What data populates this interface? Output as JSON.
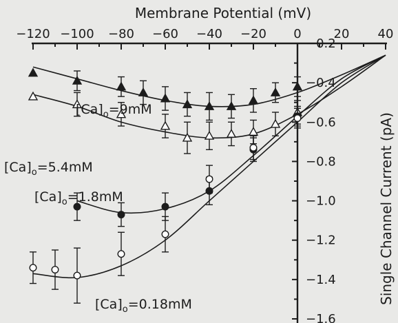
{
  "chart_data": {
    "type": "scatter",
    "title": "",
    "xlabel": "Membrane Potential (mV)",
    "ylabel": "Single Channel Current (pA)",
    "xlim": [
      -120,
      40
    ],
    "ylim": [
      -1.6,
      -0.2
    ],
    "x_ticks": [
      "-120",
      "-100",
      "-80",
      "-60",
      "-40",
      "-20",
      "0",
      "20",
      "40"
    ],
    "y_ticks": [
      "-0.2",
      "-0.4",
      "-0.6",
      "-0.8",
      "-1.0",
      "-1.2",
      "-1.4",
      "-1.6"
    ],
    "x_axis_position": "top",
    "y_axis_position": "right",
    "y_axis_crosses_at_x": 0,
    "series": [
      {
        "name": "[Ca]o=9mM",
        "label_main": "[Ca]",
        "label_sub": "o",
        "label_rest": "=9mM",
        "marker": "filled-triangle",
        "x": [
          -120,
          -100,
          -80,
          -70,
          -60,
          -50,
          -40,
          -30,
          -20,
          -10,
          0
        ],
        "y": [
          -0.35,
          -0.39,
          -0.42,
          -0.45,
          -0.48,
          -0.51,
          -0.52,
          -0.52,
          -0.49,
          -0.45,
          -0.42
        ],
        "err": [
          0,
          0.05,
          0.05,
          0.06,
          0.06,
          0.06,
          0.07,
          0.06,
          0.06,
          0.05,
          0.05
        ],
        "fit": [
          [
            -120,
            -0.32
          ],
          [
            -100,
            -0.38
          ],
          [
            -80,
            -0.44
          ],
          [
            -60,
            -0.49
          ],
          [
            -40,
            -0.52
          ],
          [
            -20,
            -0.51
          ],
          [
            0,
            -0.45
          ],
          [
            20,
            -0.36
          ],
          [
            40,
            -0.26
          ]
        ]
      },
      {
        "name": "[Ca]o=5.4mM",
        "label_main": "[Ca]",
        "label_sub": "o",
        "label_rest": "=5.4mM",
        "marker": "open-triangle",
        "x": [
          -120,
          -100,
          -80,
          -60,
          -50,
          -40,
          -30,
          -20,
          -10,
          0
        ],
        "y": [
          -0.47,
          -0.51,
          -0.56,
          -0.62,
          -0.68,
          -0.67,
          -0.66,
          -0.65,
          -0.61,
          -0.55
        ],
        "err": [
          0,
          0.06,
          0.06,
          0.06,
          0.08,
          0.07,
          0.06,
          0.06,
          0.06,
          0.06
        ],
        "fit": [
          [
            -120,
            -0.46
          ],
          [
            -100,
            -0.52
          ],
          [
            -80,
            -0.6
          ],
          [
            -60,
            -0.65
          ],
          [
            -40,
            -0.68
          ],
          [
            -20,
            -0.66
          ],
          [
            0,
            -0.56
          ],
          [
            20,
            -0.42
          ],
          [
            40,
            -0.26
          ]
        ]
      },
      {
        "name": "[Ca]o=1.8mM",
        "label_main": "[Ca]",
        "label_sub": "o",
        "label_rest": "=1.8mM",
        "marker": "filled-circle",
        "x": [
          -100,
          -80,
          -60,
          -40,
          -20,
          0
        ],
        "y": [
          -1.03,
          -1.07,
          -1.03,
          -0.95,
          -0.74,
          -0.57
        ],
        "err": [
          0.07,
          0.06,
          0.07,
          0.07,
          0.06,
          0.05
        ],
        "fit": [
          [
            -100,
            -1.0
          ],
          [
            -80,
            -1.06
          ],
          [
            -60,
            -1.04
          ],
          [
            -40,
            -0.95
          ],
          [
            -20,
            -0.77
          ],
          [
            0,
            -0.57
          ],
          [
            20,
            -0.38
          ],
          [
            40,
            -0.26
          ]
        ]
      },
      {
        "name": "[Ca]o=0.18mM",
        "label_main": "[Ca]",
        "label_sub": "o",
        "label_rest": "=0.18mM",
        "marker": "open-circle",
        "x": [
          -120,
          -110,
          -100,
          -80,
          -60,
          -40,
          -20,
          0
        ],
        "y": [
          -1.34,
          -1.35,
          -1.38,
          -1.27,
          -1.17,
          -0.89,
          -0.73,
          -0.58
        ],
        "err": [
          0.08,
          0.1,
          0.14,
          0.11,
          0.09,
          0.07,
          0.06,
          0.05
        ],
        "fit": [
          [
            -120,
            -1.37
          ],
          [
            -100,
            -1.39
          ],
          [
            -80,
            -1.33
          ],
          [
            -60,
            -1.2
          ],
          [
            -40,
            -1.0
          ],
          [
            -20,
            -0.8
          ],
          [
            0,
            -0.6
          ],
          [
            20,
            -0.4
          ],
          [
            40,
            -0.26
          ]
        ]
      }
    ]
  }
}
